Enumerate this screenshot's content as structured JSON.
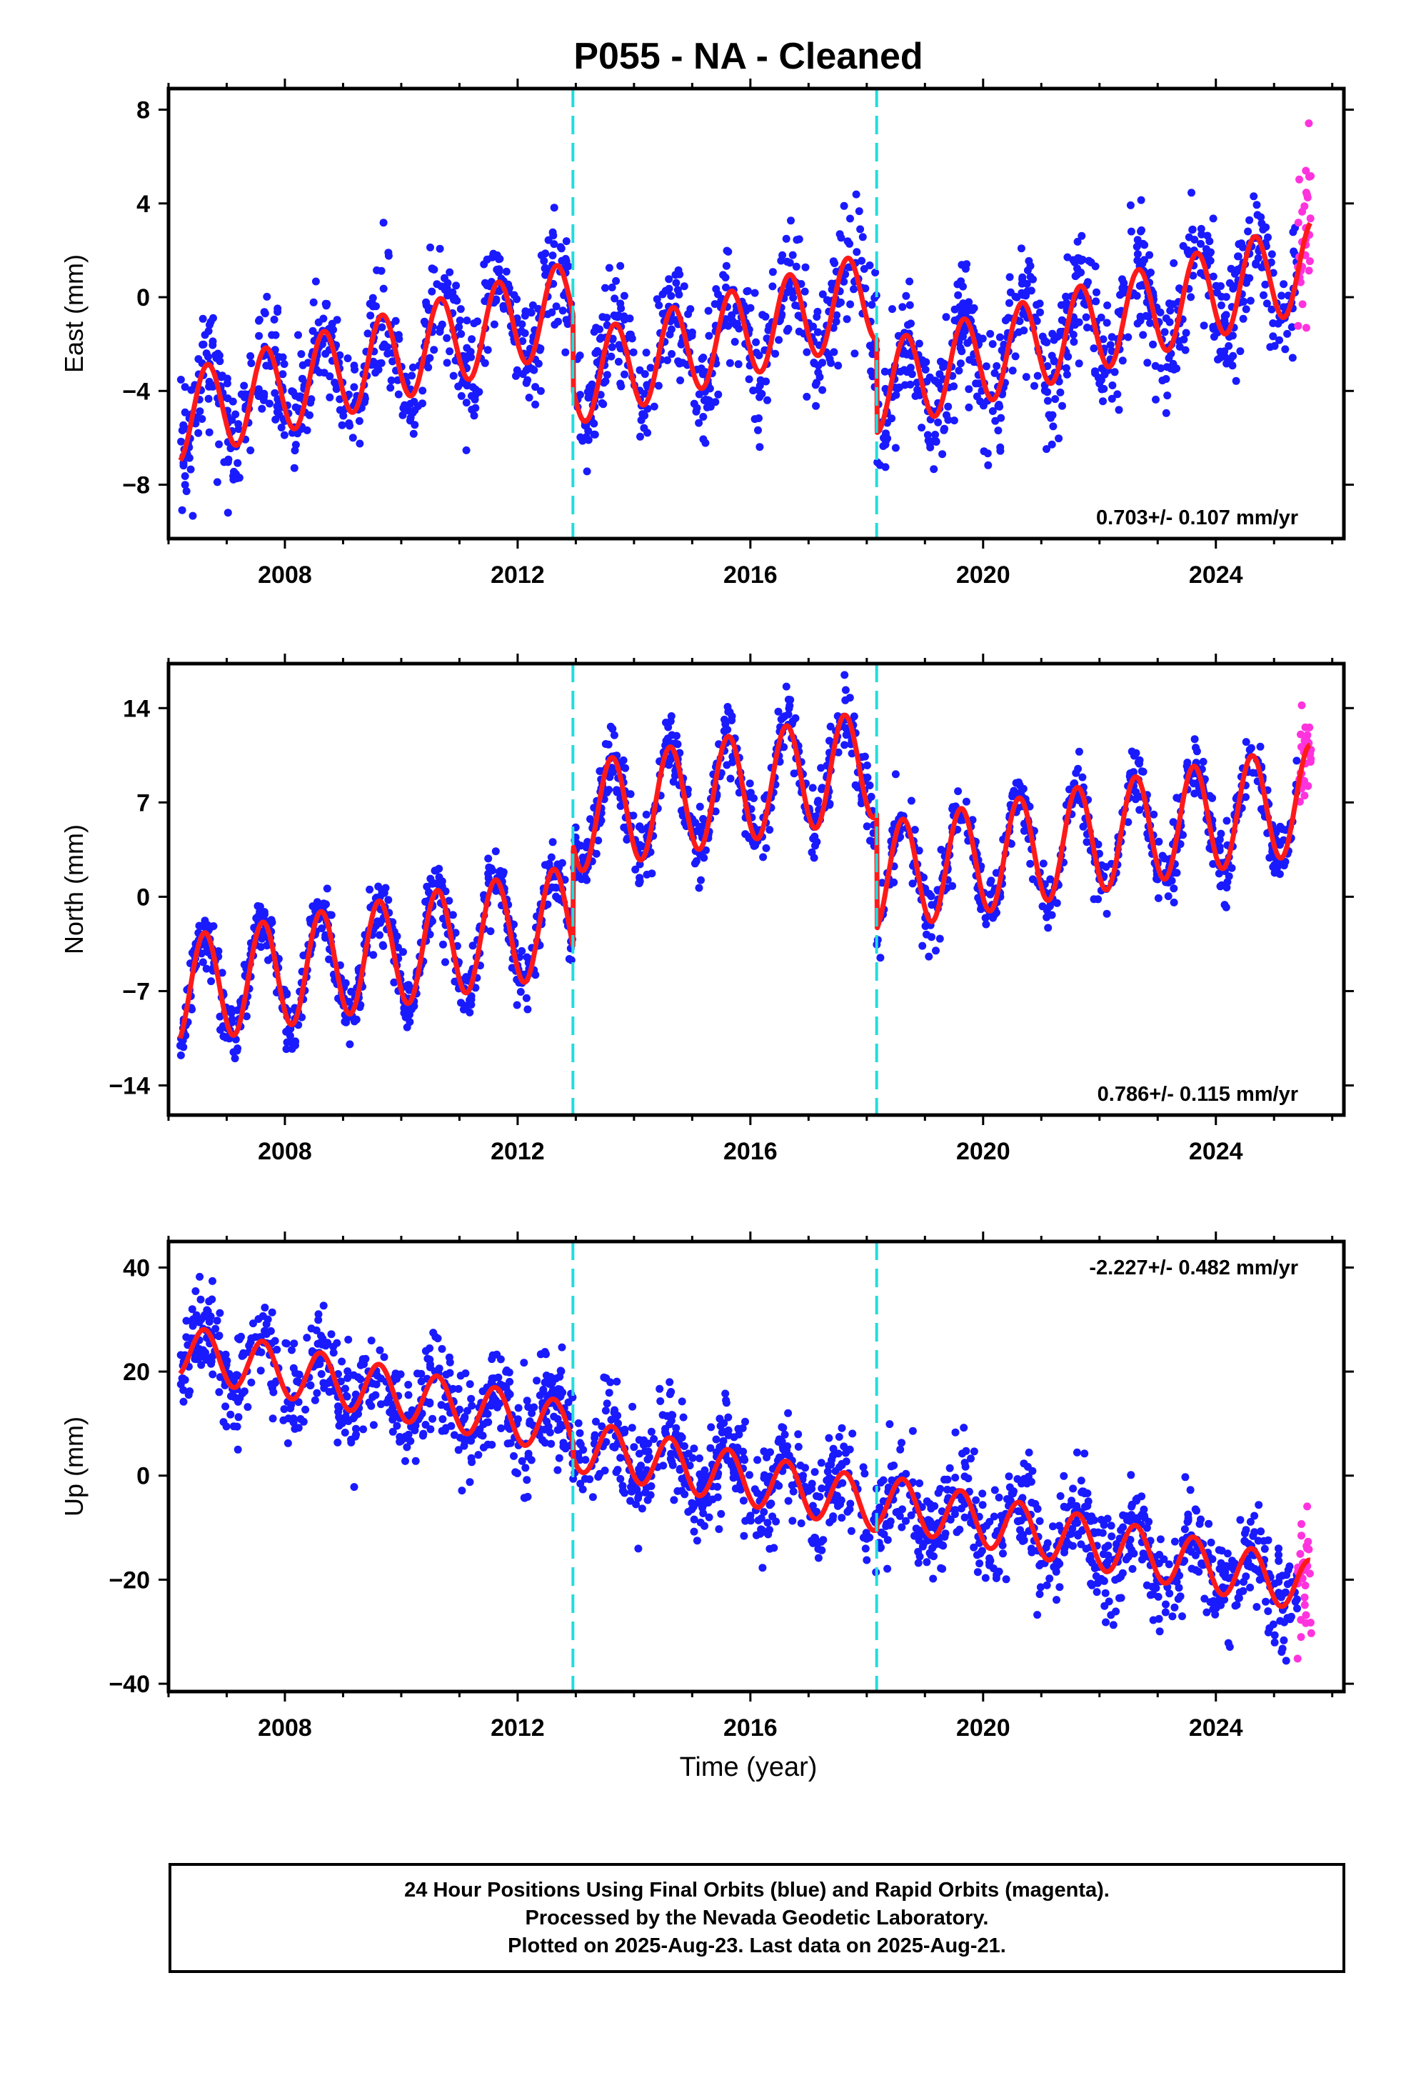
{
  "title": "P055  - NA - Cleaned",
  "xlabel": "Time (year)",
  "footer": [
    "24 Hour Positions Using Final Orbits (blue) and Rapid Orbits (magenta).",
    "Processed by the Nevada Geodetic Laboratory.",
    "Plotted on 2025-Aug-23. Last data on 2025-Aug-21."
  ],
  "colors": {
    "final_orbits": "#1a1aff",
    "rapid_orbits": "#ff33dd",
    "model_fit": "#ff1a1a",
    "offset_lines": "#22dddd",
    "frame": "#000000"
  },
  "chart_data": [
    {
      "type": "scatter",
      "ylabel": "East (mm)",
      "xlim": [
        2006.0,
        2026.2
      ],
      "ylim": [
        -10.3,
        8.9
      ],
      "xticks": [
        "2008",
        "2012",
        "2016",
        "2020",
        "2024"
      ],
      "yticks": [
        "8",
        "4",
        "0",
        "-4",
        "-8"
      ],
      "rate_label": "0.703+/- 0.107 mm/yr",
      "rate_position": "bottom-right",
      "offset_epochs": [
        2012.95,
        2018.17
      ],
      "model": {
        "base": -5.1,
        "rate": 0.703,
        "annual_amplitude": 1.9,
        "annual_phase_year": 0.67,
        "offsets": [
          {
            "epoch": 2012.95,
            "step": -3.2
          },
          {
            "epoch": 2018.17,
            "step": -4.0
          }
        ]
      },
      "scatter_noise_mm": 1.25,
      "series": [
        {
          "name": "Final Orbits (blue)",
          "x_range": [
            2006.2,
            2025.4
          ],
          "points_per_year": 90
        },
        {
          "name": "Rapid Orbits (magenta)",
          "x_range": [
            2025.4,
            2025.64
          ],
          "points_per_year": 120
        }
      ]
    },
    {
      "type": "scatter",
      "ylabel": "North (mm)",
      "xlim": [
        2006.0,
        2026.2
      ],
      "ylim": [
        -16.2,
        17.3
      ],
      "xticks": [
        "2008",
        "2012",
        "2016",
        "2020",
        "2024"
      ],
      "yticks": [
        "14",
        "7",
        "0",
        "-7",
        "-14"
      ],
      "rate_label": "0.786+/- 0.115 mm/yr",
      "rate_position": "bottom-right",
      "offset_epochs": [
        2012.95,
        2018.17
      ],
      "model": {
        "base": -7.0,
        "rate": 0.786,
        "annual_amplitude": 4.0,
        "annual_phase_year": 0.62,
        "offsets": [
          {
            "epoch": 2012.95,
            "step": 7.5
          },
          {
            "epoch": 2018.17,
            "step": -8.5
          }
        ]
      },
      "scatter_noise_mm": 1.2,
      "series": [
        {
          "name": "Final Orbits (blue)",
          "x_range": [
            2006.2,
            2025.4
          ],
          "points_per_year": 90
        },
        {
          "name": "Rapid Orbits (magenta)",
          "x_range": [
            2025.4,
            2025.64
          ],
          "points_per_year": 120
        }
      ]
    },
    {
      "type": "scatter",
      "ylabel": "Up (mm)",
      "xlim": [
        2006.0,
        2026.2
      ],
      "ylim": [
        -41.5,
        45.0
      ],
      "xticks": [
        "2008",
        "2012",
        "2016",
        "2020",
        "2024"
      ],
      "yticks": [
        "40",
        "20",
        "0",
        "-20",
        "-40"
      ],
      "rate_label": "-2.227+/- 0.482 mm/yr",
      "rate_position": "top-right",
      "offset_epochs": [
        2012.95,
        2018.17
      ],
      "model": {
        "base": 24.0,
        "rate": -2.227,
        "annual_amplitude": 5.0,
        "annual_phase_year": 0.62,
        "offsets": [
          {
            "epoch": 2012.95,
            "step": -3.0
          },
          {
            "epoch": 2018.17,
            "step": 1.0
          }
        ]
      },
      "scatter_noise_mm": 4.8,
      "series": [
        {
          "name": "Final Orbits (blue)",
          "x_range": [
            2006.2,
            2025.4
          ],
          "points_per_year": 90
        },
        {
          "name": "Rapid Orbits (magenta)",
          "x_range": [
            2025.4,
            2025.64
          ],
          "points_per_year": 120
        }
      ]
    }
  ]
}
